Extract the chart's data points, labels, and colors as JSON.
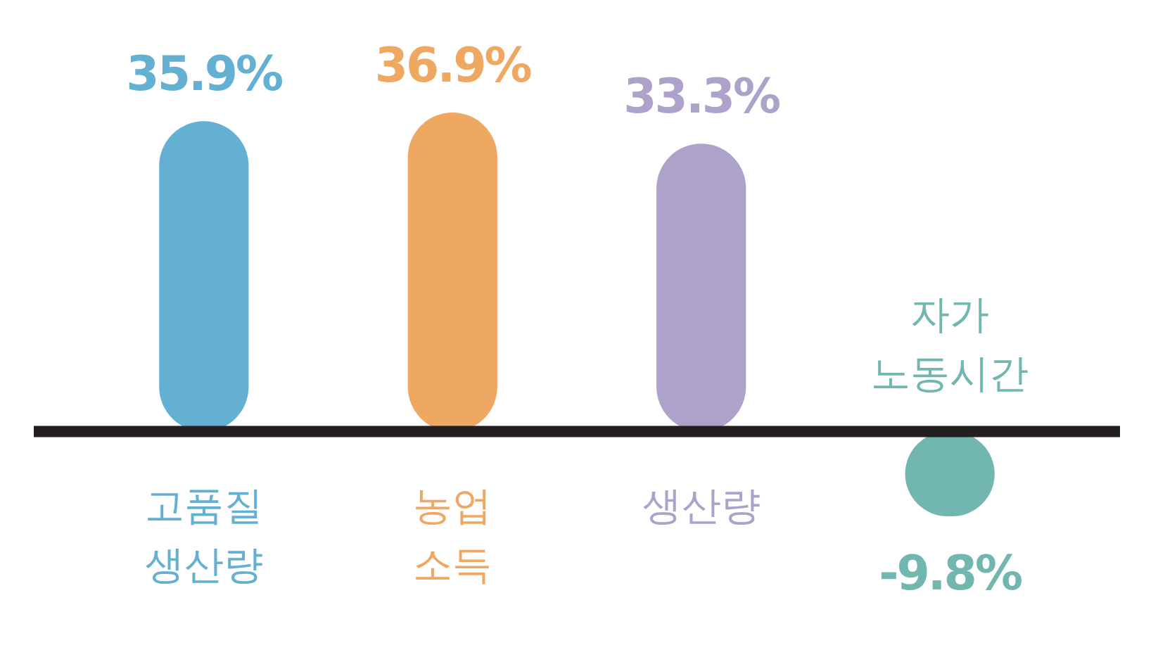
{
  "chart_data": {
    "type": "bar",
    "categories": [
      "고품질\n생산량",
      "농업\n소득",
      "생산량",
      "자가\n노동시간"
    ],
    "values": [
      35.9,
      36.9,
      33.3,
      -9.8
    ],
    "colors": [
      "#63b0d2",
      "#eea862",
      "#ada2c9",
      "#72b6b0"
    ],
    "value_labels": [
      "35.9%",
      "36.9%",
      "33.3%",
      "-9.8%"
    ]
  }
}
